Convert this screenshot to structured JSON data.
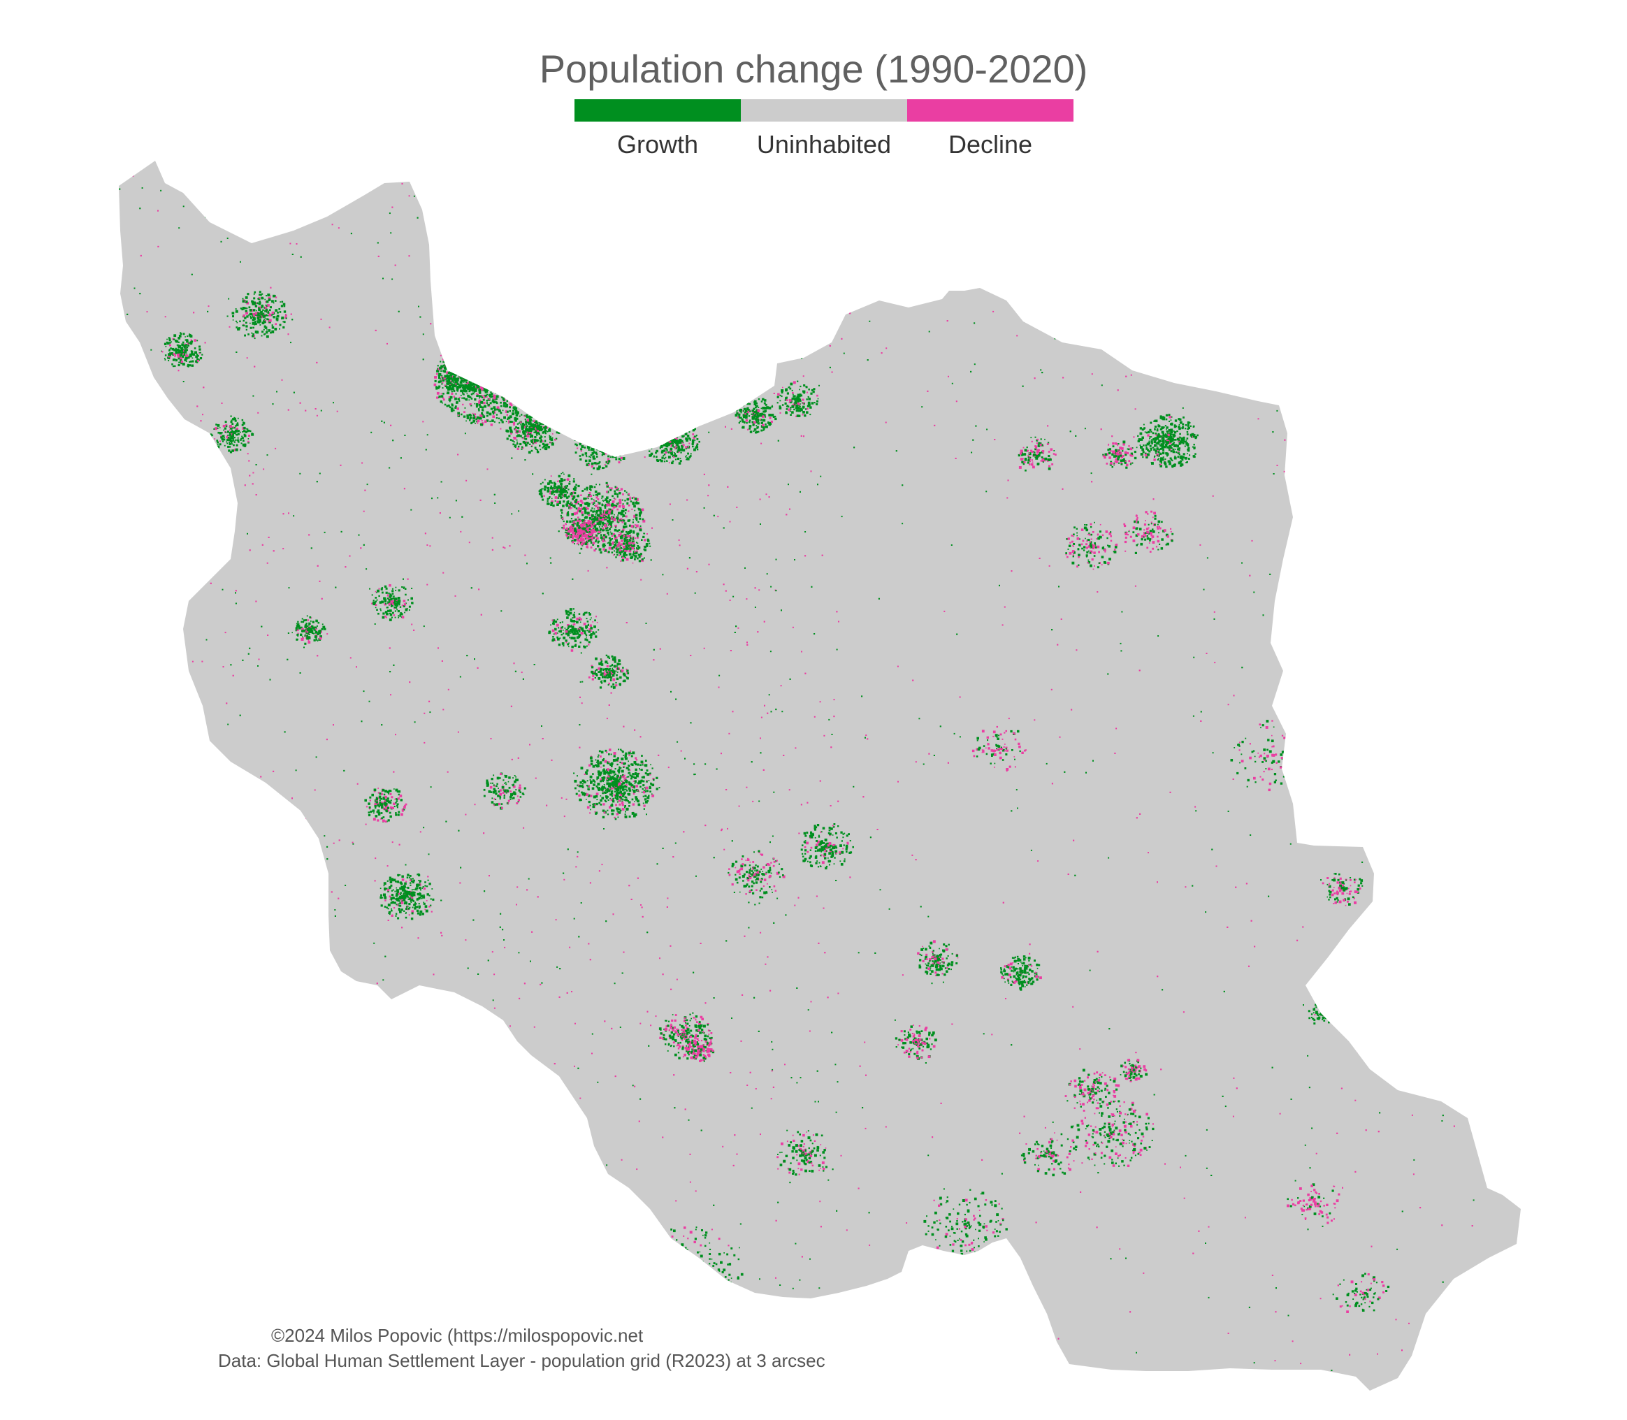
{
  "title": "Population change (1990-2020)",
  "legend": {
    "items": [
      {
        "label": "Growth",
        "color": "#008f1f"
      },
      {
        "label": "Uninhabited",
        "color": "#cccccc"
      },
      {
        "label": "Decline",
        "color": "#ea3ea2"
      }
    ]
  },
  "map": {
    "region": "Iran",
    "land_color": "#cccccc",
    "growth_color": "#008f1f",
    "decline_color": "#ea3ea2"
  },
  "credits": {
    "line1": "©2024 Milos Popovic (https://milospopovic.net",
    "line2": "Data: Global Human Settlement Layer - population grid (R2023) at 3 arcsec"
  }
}
